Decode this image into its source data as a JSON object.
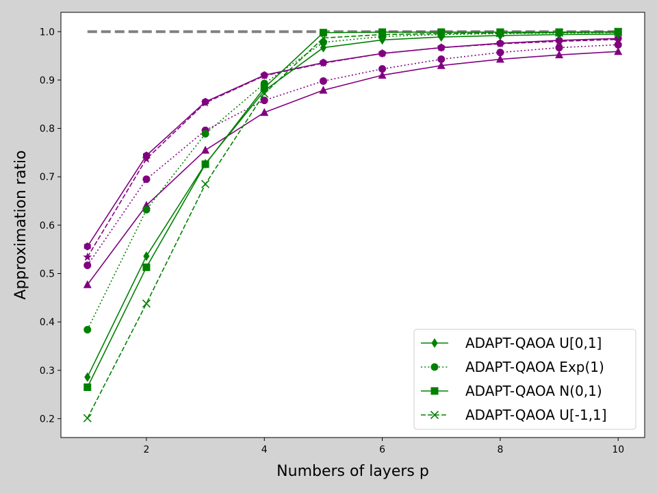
{
  "chart_data": {
    "type": "line",
    "xlabel": "Numbers of layers p",
    "ylabel": "Approximation ratio",
    "xlim": [
      0.55,
      10.45
    ],
    "ylim": [
      0.161,
      1.04
    ],
    "xticks": [
      2,
      4,
      6,
      8,
      10
    ],
    "yticks": [
      0.2,
      0.3,
      0.4,
      0.5,
      0.6,
      0.7,
      0.8,
      0.9,
      1.0
    ],
    "xtick_labels": [
      "2",
      "4",
      "6",
      "8",
      "10"
    ],
    "ytick_labels": [
      "0.2",
      "0.3",
      "0.4",
      "0.5",
      "0.6",
      "0.7",
      "0.8",
      "0.9",
      "1.0"
    ],
    "grid": false,
    "legend_position": "lower-right",
    "colors": {
      "green": "#008000",
      "purple": "#800080",
      "reference": "#808080",
      "background": "#d3d3d3"
    },
    "x": [
      1,
      2,
      3,
      4,
      5,
      6,
      7,
      8,
      9,
      10
    ],
    "reference_line": {
      "x": [
        1,
        10
      ],
      "values": [
        1.0,
        1.0
      ],
      "style": "dashed"
    },
    "series": [
      {
        "name": "ADAPT-QAOA U[0,1]",
        "color": "#008000",
        "marker": "diamond",
        "linestyle": "solid",
        "in_legend": true,
        "values": [
          0.286,
          0.536,
          0.727,
          0.878,
          0.967,
          0.983,
          0.989,
          0.992,
          0.994,
          0.995
        ]
      },
      {
        "name": "ADAPT-QAOA Exp(1)",
        "color": "#008000",
        "marker": "circle",
        "linestyle": "dotted",
        "in_legend": true,
        "values": [
          0.384,
          0.632,
          0.789,
          0.893,
          0.978,
          0.99,
          0.994,
          0.996,
          0.997,
          0.998
        ]
      },
      {
        "name": "ADAPT-QAOA N(0,1)",
        "color": "#008000",
        "marker": "square",
        "linestyle": "solid",
        "in_legend": true,
        "values": [
          0.265,
          0.513,
          0.726,
          0.884,
          0.998,
          0.999,
          0.999,
          0.999,
          0.999,
          1.0
        ]
      },
      {
        "name": "ADAPT-QAOA U[-1,1]",
        "color": "#008000",
        "marker": "x",
        "linestyle": "dashed",
        "in_legend": true,
        "values": [
          0.201,
          0.438,
          0.685,
          0.872,
          0.987,
          0.994,
          0.996,
          0.997,
          0.998,
          0.999
        ]
      },
      {
        "name": "",
        "color": "#800080",
        "marker": "triangle",
        "linestyle": "solid",
        "in_legend": false,
        "values": [
          0.477,
          0.641,
          0.755,
          0.833,
          0.879,
          0.91,
          0.93,
          0.943,
          0.952,
          0.959
        ]
      },
      {
        "name": "",
        "color": "#800080",
        "marker": "circle",
        "linestyle": "dotted",
        "in_legend": false,
        "values": [
          0.517,
          0.695,
          0.796,
          0.858,
          0.898,
          0.923,
          0.943,
          0.957,
          0.967,
          0.973
        ]
      },
      {
        "name": "",
        "color": "#800080",
        "marker": "star",
        "linestyle": "dashed",
        "in_legend": false,
        "values": [
          0.534,
          0.737,
          0.853,
          0.909,
          0.935,
          0.955,
          0.967,
          0.975,
          0.98,
          0.984
        ]
      },
      {
        "name": "",
        "color": "#800080",
        "marker": "hexagon",
        "linestyle": "solid",
        "in_legend": false,
        "values": [
          0.556,
          0.744,
          0.855,
          0.91,
          0.936,
          0.955,
          0.967,
          0.976,
          0.982,
          0.986
        ]
      }
    ]
  }
}
